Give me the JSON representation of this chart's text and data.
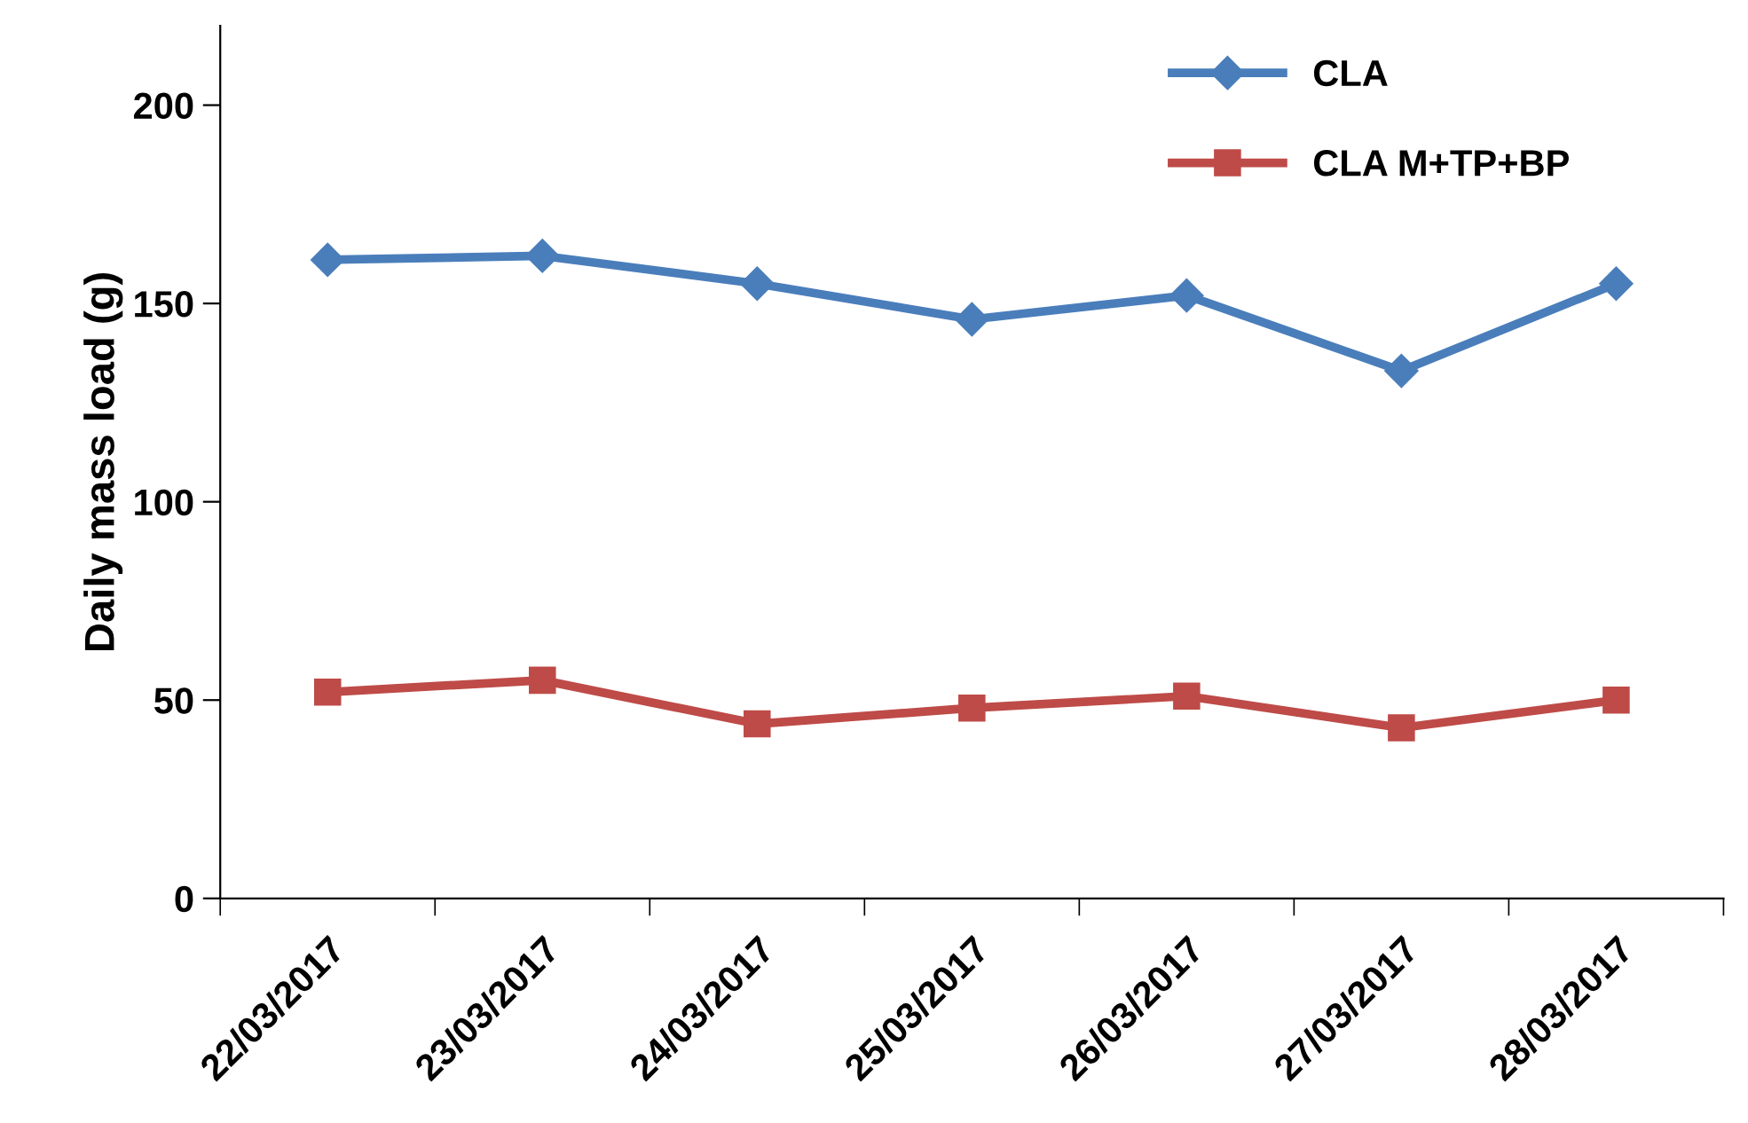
{
  "chart_data": {
    "type": "line",
    "ylabel": "Daily mass load (g)",
    "categories": [
      "22/03/2017",
      "23/03/2017",
      "24/03/2017",
      "25/03/2017",
      "26/03/2017",
      "27/03/2017",
      "28/03/2017"
    ],
    "series": [
      {
        "name": "CLA",
        "color": "#4a7ebb",
        "marker": "diamond",
        "values": [
          161,
          162,
          155,
          146,
          152,
          133,
          155
        ]
      },
      {
        "name": "CLA M+TP+BP",
        "color": "#be4b48",
        "marker": "square",
        "values": [
          52,
          55,
          44,
          48,
          51,
          43,
          50
        ]
      }
    ],
    "ylim": [
      0,
      220
    ],
    "yticks": [
      0,
      50,
      100,
      150,
      200
    ],
    "grid": false,
    "legend": "top right",
    "line_style": "solid"
  }
}
